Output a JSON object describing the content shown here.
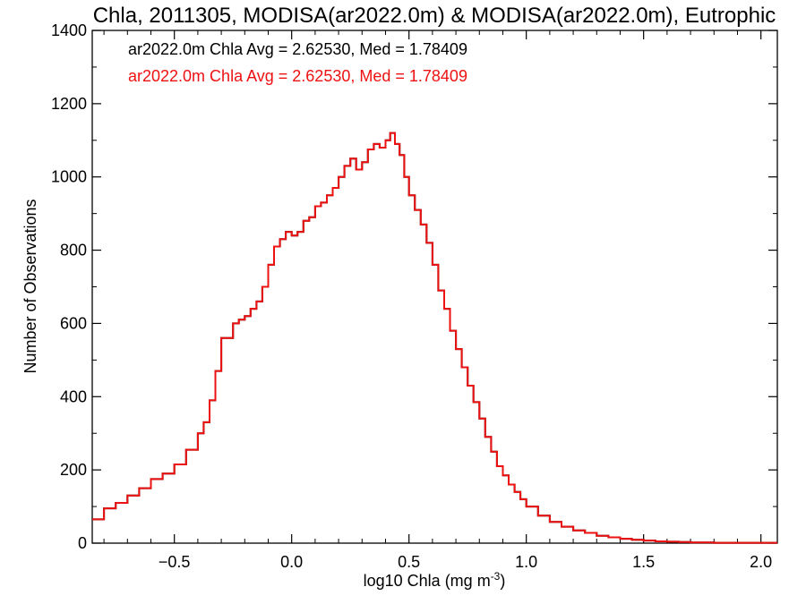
{
  "chart_data": {
    "type": "line",
    "title": "Chla, 2011305, MODISA(ar2022.0m) & MODISA(ar2022.0m), Eutrophic",
    "xlabel_main": "log10 Chla (mg m",
    "xlabel_sup": "-3",
    "xlabel_close": ")",
    "ylabel": "Number of Observations",
    "xlim": [
      -0.85,
      2.07
    ],
    "ylim": [
      0,
      1400
    ],
    "x_ticks": [
      -0.5,
      0.0,
      0.5,
      1.0,
      1.5,
      2.0
    ],
    "x_tick_labels": [
      "−0.5",
      "0.0",
      "0.5",
      "1.0",
      "1.5",
      "2.0"
    ],
    "y_ticks": [
      0,
      200,
      400,
      600,
      800,
      1000,
      1200,
      1400
    ],
    "y_tick_labels": [
      "0",
      "200",
      "400",
      "600",
      "800",
      "1000",
      "1200",
      "1400"
    ],
    "grid": false,
    "annotations": [
      {
        "text": "ar2022.0m Chla Avg = 2.62530, Med = 1.78409",
        "color": "#000000"
      },
      {
        "text": "ar2022.0m Chla Avg = 2.62530, Med = 1.78409",
        "color": "#ee1111"
      }
    ],
    "series": [
      {
        "color": "#000000",
        "x": [
          -0.85,
          -0.8,
          -0.75,
          -0.7,
          -0.65,
          -0.6,
          -0.55,
          -0.5,
          -0.45,
          -0.4,
          -0.375,
          -0.35,
          -0.325,
          -0.3,
          -0.275,
          -0.25,
          -0.225,
          -0.2,
          -0.175,
          -0.15,
          -0.125,
          -0.1,
          -0.075,
          -0.05,
          -0.025,
          0.0,
          0.025,
          0.05,
          0.075,
          0.1,
          0.125,
          0.15,
          0.175,
          0.2,
          0.225,
          0.25,
          0.275,
          0.3,
          0.325,
          0.35,
          0.375,
          0.4,
          0.42,
          0.44,
          0.46,
          0.48,
          0.5,
          0.525,
          0.55,
          0.575,
          0.6,
          0.625,
          0.65,
          0.675,
          0.7,
          0.725,
          0.75,
          0.775,
          0.8,
          0.825,
          0.85,
          0.875,
          0.9,
          0.925,
          0.95,
          0.975,
          1.0,
          1.05,
          1.1,
          1.15,
          1.2,
          1.25,
          1.3,
          1.35,
          1.4,
          1.45,
          1.5,
          1.55,
          1.6,
          1.65,
          1.7,
          1.75,
          1.8,
          1.85,
          1.9,
          1.95,
          2.0,
          2.05
        ],
        "y": [
          65,
          95,
          110,
          130,
          150,
          175,
          190,
          215,
          255,
          300,
          330,
          390,
          470,
          560,
          560,
          600,
          610,
          620,
          640,
          660,
          700,
          760,
          810,
          830,
          850,
          840,
          850,
          880,
          890,
          920,
          930,
          950,
          970,
          1000,
          1030,
          1050,
          1020,
          1040,
          1075,
          1090,
          1080,
          1100,
          1120,
          1090,
          1060,
          1000,
          950,
          910,
          870,
          820,
          760,
          690,
          640,
          580,
          530,
          480,
          430,
          385,
          340,
          290,
          250,
          210,
          185,
          160,
          140,
          120,
          100,
          75,
          58,
          45,
          35,
          28,
          20,
          16,
          12,
          9,
          7,
          5,
          4,
          3,
          2,
          2,
          1,
          1,
          1,
          1,
          1,
          1
        ]
      },
      {
        "color": "#ee1111",
        "x": [
          -0.85,
          -0.8,
          -0.75,
          -0.7,
          -0.65,
          -0.6,
          -0.55,
          -0.5,
          -0.45,
          -0.4,
          -0.375,
          -0.35,
          -0.325,
          -0.3,
          -0.275,
          -0.25,
          -0.225,
          -0.2,
          -0.175,
          -0.15,
          -0.125,
          -0.1,
          -0.075,
          -0.05,
          -0.025,
          0.0,
          0.025,
          0.05,
          0.075,
          0.1,
          0.125,
          0.15,
          0.175,
          0.2,
          0.225,
          0.25,
          0.275,
          0.3,
          0.325,
          0.35,
          0.375,
          0.4,
          0.42,
          0.44,
          0.46,
          0.48,
          0.5,
          0.525,
          0.55,
          0.575,
          0.6,
          0.625,
          0.65,
          0.675,
          0.7,
          0.725,
          0.75,
          0.775,
          0.8,
          0.825,
          0.85,
          0.875,
          0.9,
          0.925,
          0.95,
          0.975,
          1.0,
          1.05,
          1.1,
          1.15,
          1.2,
          1.25,
          1.3,
          1.35,
          1.4,
          1.45,
          1.5,
          1.55,
          1.6,
          1.65,
          1.7,
          1.75,
          1.8,
          1.85,
          1.9,
          1.95,
          2.0,
          2.05
        ],
        "y": [
          65,
          95,
          110,
          130,
          150,
          175,
          190,
          215,
          255,
          300,
          330,
          390,
          470,
          560,
          560,
          600,
          610,
          620,
          640,
          660,
          700,
          760,
          810,
          830,
          850,
          840,
          850,
          880,
          890,
          920,
          930,
          950,
          970,
          1000,
          1030,
          1050,
          1020,
          1040,
          1075,
          1090,
          1080,
          1100,
          1120,
          1090,
          1060,
          1000,
          950,
          910,
          870,
          820,
          760,
          690,
          640,
          580,
          530,
          480,
          430,
          385,
          340,
          290,
          250,
          210,
          185,
          160,
          140,
          120,
          100,
          75,
          58,
          45,
          35,
          28,
          20,
          16,
          12,
          9,
          7,
          5,
          4,
          3,
          2,
          2,
          1,
          1,
          1,
          1,
          1,
          1
        ]
      }
    ]
  }
}
